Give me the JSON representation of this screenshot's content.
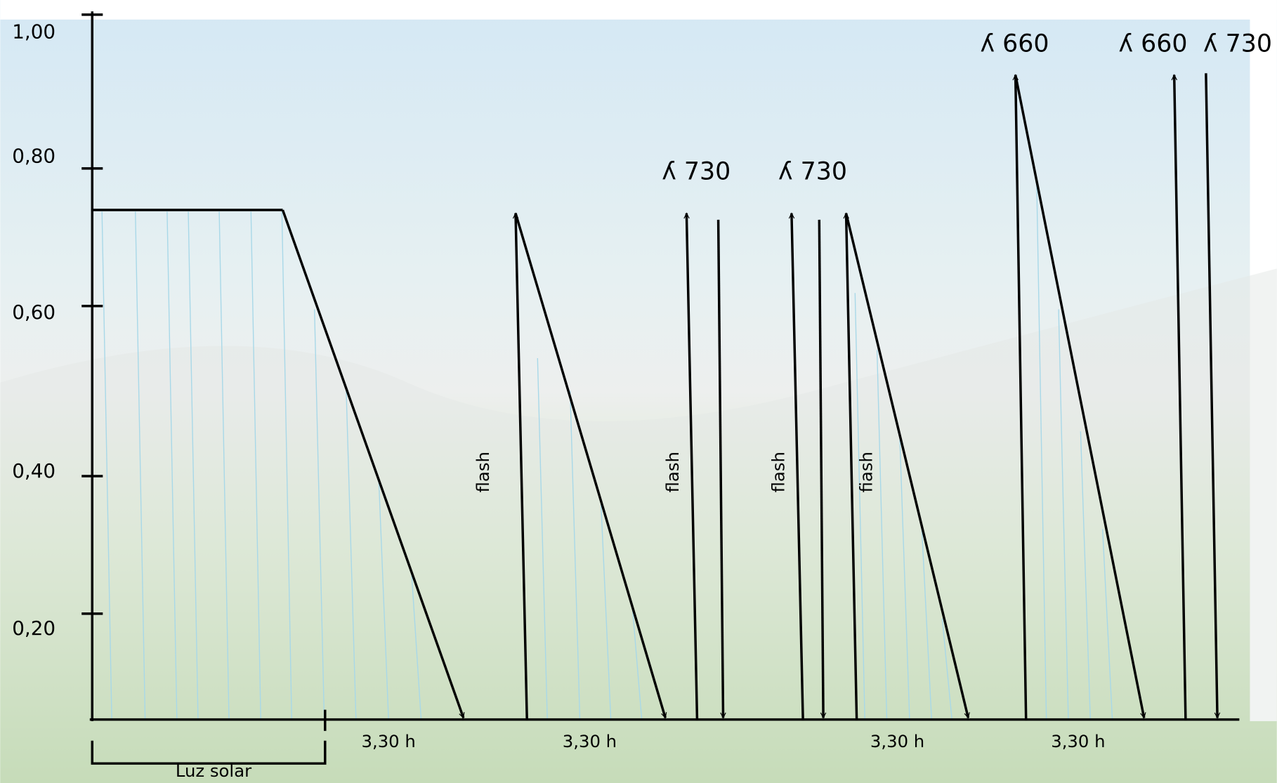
{
  "y_axis": {
    "ticks": [
      "1,00",
      "0,80",
      "0,60",
      "0,40",
      "0,20"
    ]
  },
  "wavelength_labels": [
    "ʎ 730",
    "ʎ 730",
    "ʎ 660",
    "ʎ 660",
    "ʎ 730"
  ],
  "flash_labels": [
    "flash",
    "flash",
    "flash",
    "fiash"
  ],
  "interval_labels": [
    "3,30 h",
    "3,30 h",
    "3,30 h",
    "3,30 h"
  ],
  "sunlight_label": "Luz solar"
}
